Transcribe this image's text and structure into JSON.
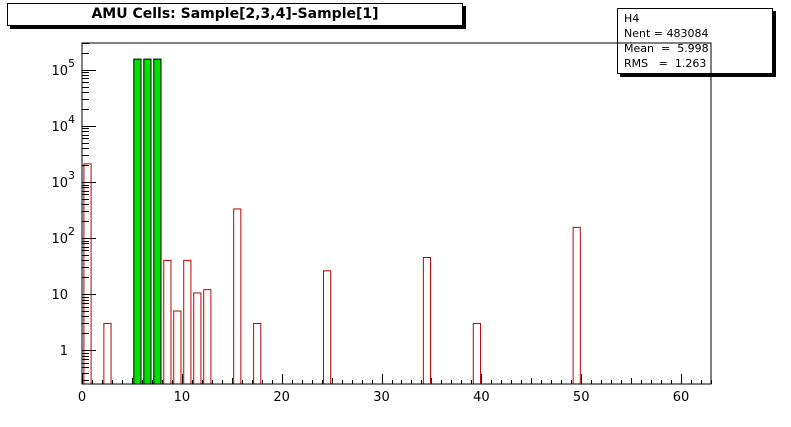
{
  "title": "AMU Cells: Sample[2,3,4]-Sample[1]",
  "stats": {
    "name": "H4",
    "rows": [
      {
        "label": "Nent",
        "value": "483084"
      },
      {
        "label": "Mean",
        "value": "5.998"
      },
      {
        "label": "RMS",
        "value": "1.263"
      }
    ]
  },
  "chart_data": {
    "type": "bar",
    "title": "AMU Cells: Sample[2,3,4]-Sample[1]",
    "xlabel": "",
    "ylabel": "",
    "xlim": [
      0,
      63
    ],
    "ylim": [
      0.25,
      300000
    ],
    "yscale": "log",
    "bin_width": 1,
    "x_ticks": [
      0,
      10,
      20,
      30,
      40,
      50,
      60
    ],
    "y_ticks": [
      {
        "value": 1,
        "base": "1",
        "exp": ""
      },
      {
        "value": 10,
        "base": "10",
        "exp": ""
      },
      {
        "value": 100,
        "base": "10",
        "exp": "2"
      },
      {
        "value": 1000,
        "base": "10",
        "exp": "3"
      },
      {
        "value": 10000,
        "base": "10",
        "exp": "4"
      },
      {
        "value": 100000,
        "base": "10",
        "exp": "5"
      }
    ],
    "grid": false,
    "legend": "none",
    "colors": {
      "outline": "#c00000",
      "highlight_fill": "#00e000",
      "highlight_stroke": "#000000"
    },
    "bins": [
      {
        "x": 0,
        "value": 2100
      },
      {
        "x": 2,
        "value": 3
      },
      {
        "x": 5,
        "value": 155000,
        "highlight": true
      },
      {
        "x": 6,
        "value": 155000,
        "highlight": true
      },
      {
        "x": 7,
        "value": 155000,
        "highlight": true
      },
      {
        "x": 8,
        "value": 40
      },
      {
        "x": 9,
        "value": 5
      },
      {
        "x": 10,
        "value": 40
      },
      {
        "x": 11,
        "value": 10.5
      },
      {
        "x": 12,
        "value": 12
      },
      {
        "x": 15,
        "value": 330
      },
      {
        "x": 17,
        "value": 3
      },
      {
        "x": 24,
        "value": 26
      },
      {
        "x": 34,
        "value": 45
      },
      {
        "x": 39,
        "value": 3
      },
      {
        "x": 49,
        "value": 155
      }
    ]
  }
}
